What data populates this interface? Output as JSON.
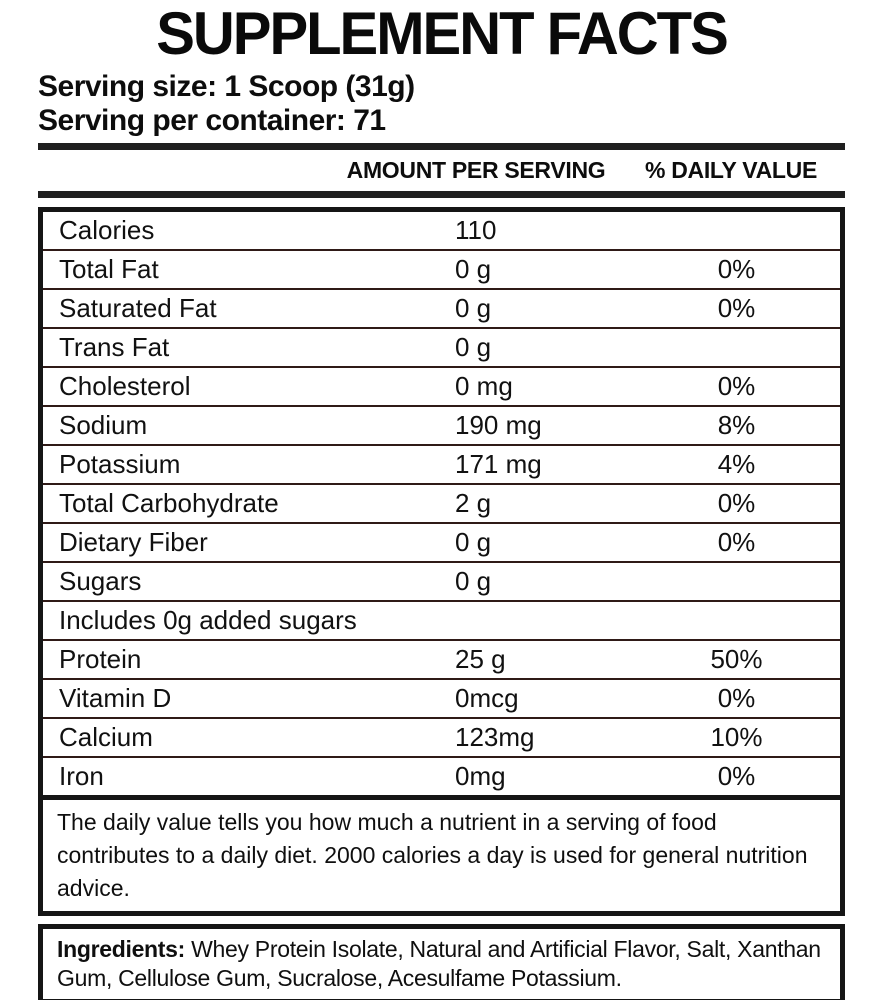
{
  "title": "SUPPLEMENT FACTS",
  "serving": {
    "size_label": "Serving size: 1 Scoop (31g)",
    "per_container_label": "Serving per container: 71"
  },
  "columns": {
    "amount": "AMOUNT PER SERVING",
    "daily_value": "% DAILY VALUE"
  },
  "rows": [
    {
      "label": "Calories",
      "amount": "110",
      "dv": ""
    },
    {
      "label": "Total Fat",
      "amount": "0 g",
      "dv": "0%"
    },
    {
      "label": "Saturated Fat",
      "amount": "0 g",
      "dv": "0%"
    },
    {
      "label": "Trans Fat",
      "amount": "0 g",
      "dv": ""
    },
    {
      "label": "Cholesterol",
      "amount": "0 mg",
      "dv": "0%"
    },
    {
      "label": "Sodium",
      "amount": "190 mg",
      "dv": "8%"
    },
    {
      "label": "Potassium",
      "amount": "171 mg",
      "dv": "4%"
    },
    {
      "label": "Total Carbohydrate",
      "amount": "2 g",
      "dv": "0%"
    },
    {
      "label": "Dietary Fiber",
      "amount": "0 g",
      "dv": "0%"
    },
    {
      "label": "Sugars",
      "amount": "0 g",
      "dv": ""
    },
    {
      "label": "Includes 0g added sugars",
      "amount": "",
      "dv": ""
    },
    {
      "label": "Protein",
      "amount": "25 g",
      "dv": "50%"
    },
    {
      "label": "Vitamin D",
      "amount": "0mcg",
      "dv": "0%"
    },
    {
      "label": "Calcium",
      "amount": "123mg",
      "dv": "10%"
    },
    {
      "label": "Iron",
      "amount": "0mg",
      "dv": "0%"
    }
  ],
  "footnote": "The daily value tells you how much a nutrient in a serving of food contributes to a daily diet. 2000 calories a day is used for general nutrition advice.",
  "ingredients": {
    "label": "Ingredients:",
    "text": " Whey Protein Isolate, Natural and Artificial Flavor, Salt, Xanthan Gum, Cellulose Gum, Sucralose, Acesulfame Potassium."
  },
  "colors": {
    "row_divider": "#2f1a17",
    "box_border": "#151515",
    "rule": "#1f1f1f",
    "text": "#111111",
    "background": "#ffffff"
  }
}
